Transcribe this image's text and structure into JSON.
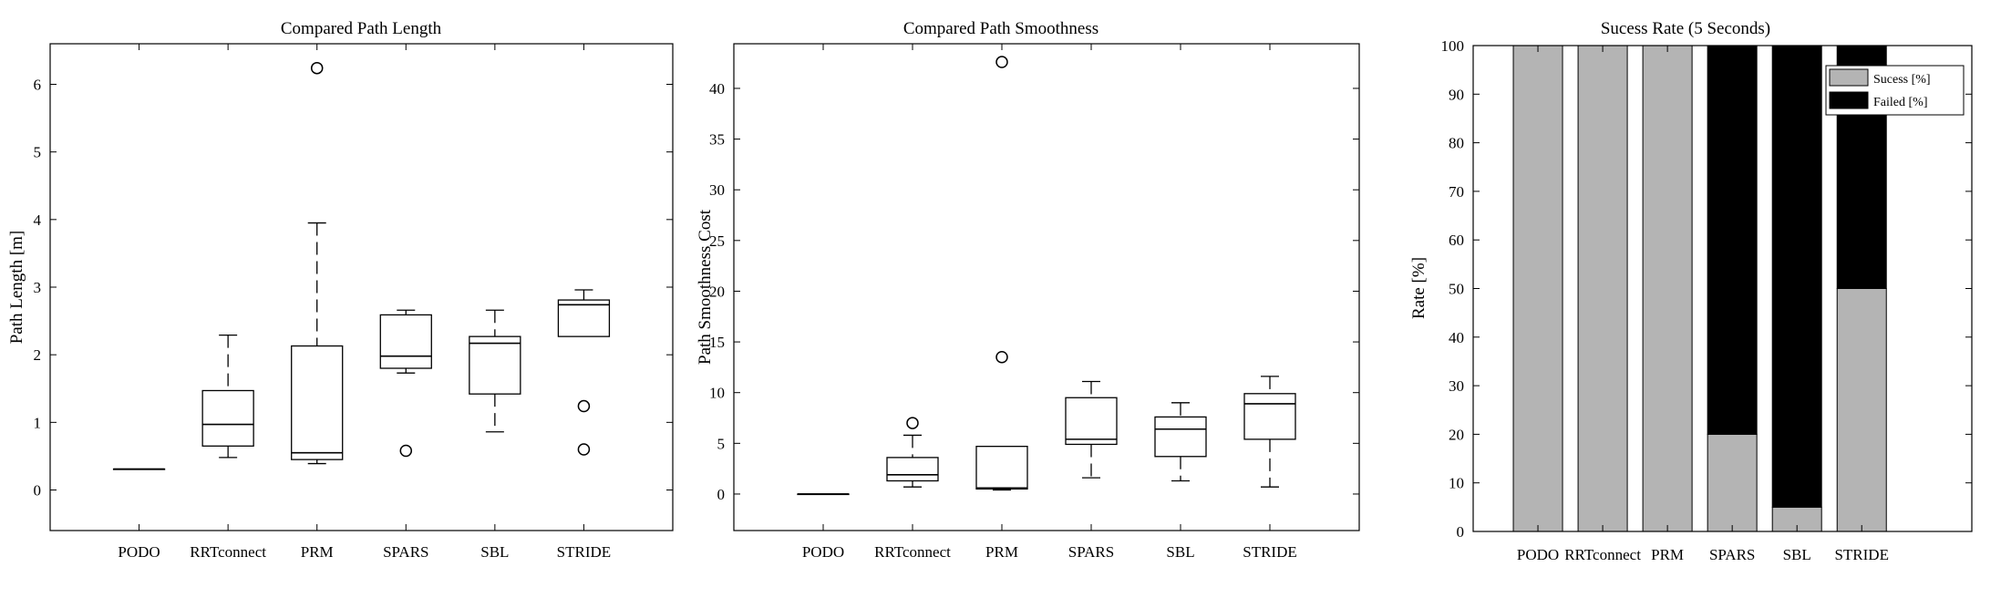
{
  "chart_data": [
    {
      "type": "box",
      "title": "Compared Path Length",
      "xlabel": "",
      "ylabel": "Path Length [m]",
      "ylim": [
        -0.6,
        6.6
      ],
      "yticks": [
        0,
        1,
        2,
        3,
        4,
        5,
        6
      ],
      "categories": [
        "PODO",
        "RRTconnect",
        "PRM",
        "SPARS",
        "SBL",
        "STRIDE"
      ],
      "boxes": [
        {
          "min": 0.31,
          "q1": 0.31,
          "median": 0.31,
          "q3": 0.31,
          "max": 0.31,
          "outliers": []
        },
        {
          "min": 0.48,
          "q1": 0.65,
          "median": 0.97,
          "q3": 1.47,
          "max": 2.29,
          "outliers": []
        },
        {
          "min": 0.39,
          "q1": 0.45,
          "median": 0.55,
          "q3": 2.13,
          "max": 3.95,
          "outliers": [
            6.24
          ]
        },
        {
          "min": 1.73,
          "q1": 1.8,
          "median": 1.98,
          "q3": 2.59,
          "max": 2.66,
          "outliers": [
            0.58
          ]
        },
        {
          "min": 0.86,
          "q1": 1.42,
          "median": 2.17,
          "q3": 2.27,
          "max": 2.66,
          "outliers": []
        },
        {
          "min": 2.27,
          "q1": 2.27,
          "median": 2.74,
          "q3": 2.81,
          "max": 2.96,
          "outliers": [
            1.24,
            0.6
          ]
        }
      ]
    },
    {
      "type": "box",
      "title": "Compared Path Smoothness",
      "xlabel": "",
      "ylabel": "Path Smoothness Cost",
      "ylim": [
        -3.6,
        44.4
      ],
      "yticks": [
        0,
        5,
        10,
        15,
        20,
        25,
        30,
        35,
        40
      ],
      "categories": [
        "PODO",
        "RRTconnect",
        "PRM",
        "SPARS",
        "SBL",
        "STRIDE"
      ],
      "boxes": [
        {
          "min": 0.0,
          "q1": 0.0,
          "median": 0.0,
          "q3": 0.0,
          "max": 0.0,
          "outliers": []
        },
        {
          "min": 0.7,
          "q1": 1.3,
          "median": 1.9,
          "q3": 3.6,
          "max": 5.8,
          "outliers": [
            7.0
          ]
        },
        {
          "min": 0.4,
          "q1": 0.5,
          "median": 0.6,
          "q3": 4.7,
          "max": 4.7,
          "outliers": [
            13.5,
            42.6
          ]
        },
        {
          "min": 1.6,
          "q1": 4.9,
          "median": 5.4,
          "q3": 9.5,
          "max": 11.1,
          "outliers": []
        },
        {
          "min": 1.3,
          "q1": 3.7,
          "median": 6.4,
          "q3": 7.6,
          "max": 9.0,
          "outliers": []
        },
        {
          "min": 0.7,
          "q1": 5.4,
          "median": 8.9,
          "q3": 9.9,
          "max": 11.6,
          "outliers": []
        }
      ]
    },
    {
      "type": "stacked-bar",
      "title": "Sucess Rate (5 Seconds)",
      "xlabel": "",
      "ylabel": "Rate [%]",
      "ylim": [
        0,
        100
      ],
      "yticks": [
        0,
        10,
        20,
        30,
        40,
        50,
        60,
        70,
        80,
        90,
        100
      ],
      "categories": [
        "PODO",
        "RRTconnect",
        "PRM",
        "SPARS",
        "SBL",
        "STRIDE"
      ],
      "series": [
        {
          "name": "Sucess [%]",
          "color": "#b4b4b4",
          "values": [
            100,
            100,
            100,
            20,
            5,
            50
          ]
        },
        {
          "name": "Failed [%]",
          "color": "#000000",
          "values": [
            0,
            0,
            0,
            80,
            95,
            50
          ]
        }
      ],
      "legend_position": "top-right"
    }
  ]
}
